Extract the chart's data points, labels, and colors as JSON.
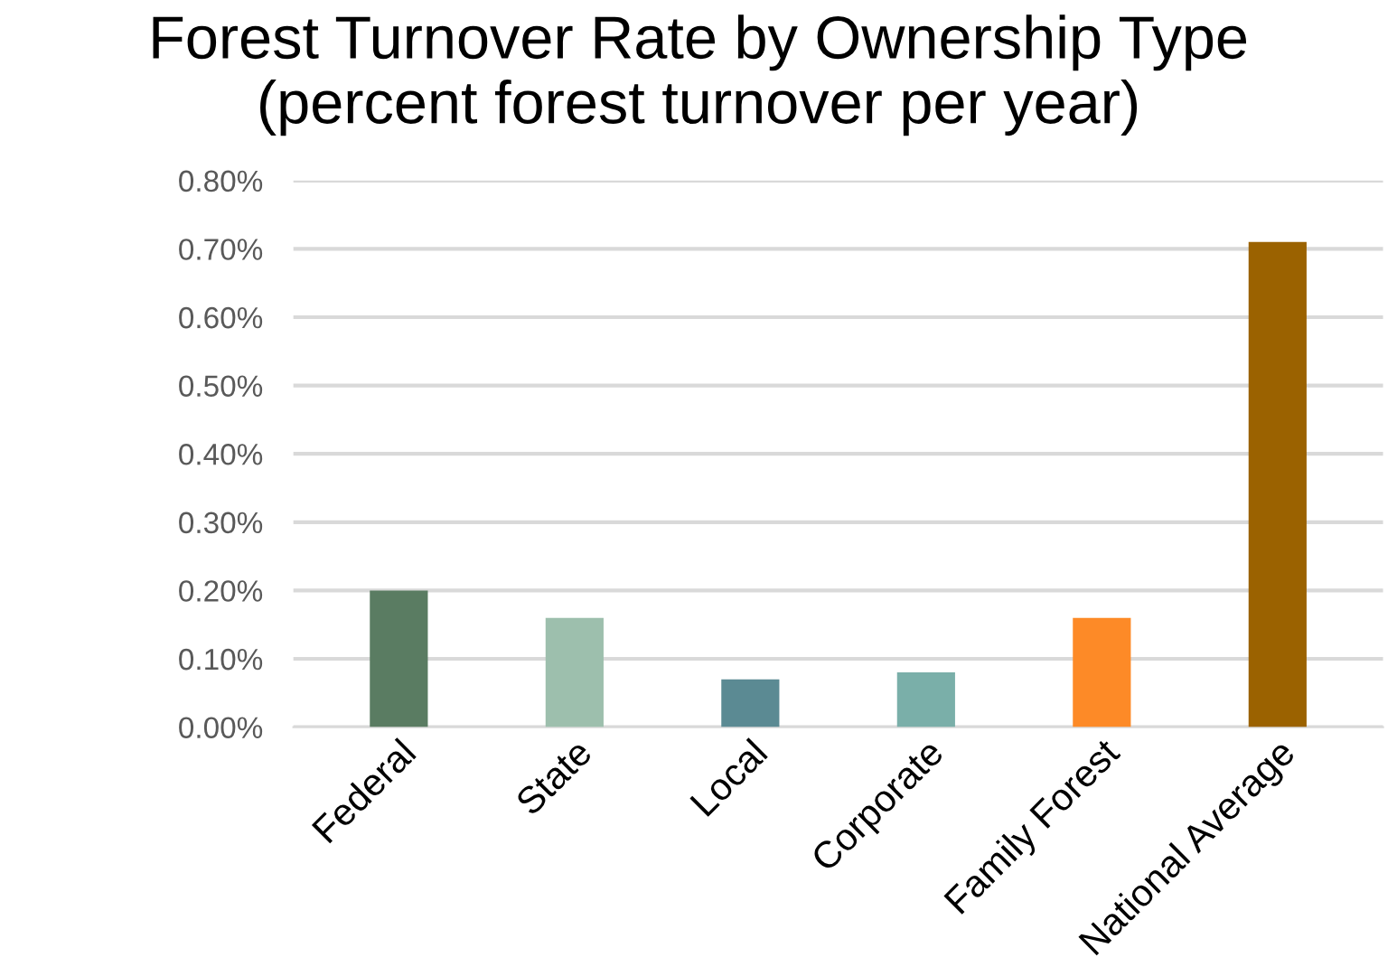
{
  "chart_data": {
    "type": "bar",
    "title": "Forest Turnover Rate by Ownership Type\n(percent forest turnover per year)",
    "categories": [
      "Federal",
      "State",
      "Local",
      "Corporate",
      "Family Forest",
      "National Average"
    ],
    "values": [
      0.2,
      0.16,
      0.07,
      0.08,
      0.16,
      0.71
    ],
    "colors": [
      "#5a7c62",
      "#9dbfad",
      "#5b8a93",
      "#7aafa9",
      "#fd8a27",
      "#9b6200"
    ],
    "ylim": [
      0,
      0.8
    ],
    "yticks": [
      {
        "value": 0,
        "label": "0.00%"
      },
      {
        "value": 0.1,
        "label": "0.10%"
      },
      {
        "value": 0.2,
        "label": "0.20%"
      },
      {
        "value": 0.3,
        "label": "0.30%"
      },
      {
        "value": 0.4,
        "label": "0.40%"
      },
      {
        "value": 0.5,
        "label": "0.50%"
      },
      {
        "value": 0.6,
        "label": "0.60%"
      },
      {
        "value": 0.7,
        "label": "0.70%"
      },
      {
        "value": 0.8,
        "label": "0.80%"
      }
    ],
    "grid": "y"
  }
}
